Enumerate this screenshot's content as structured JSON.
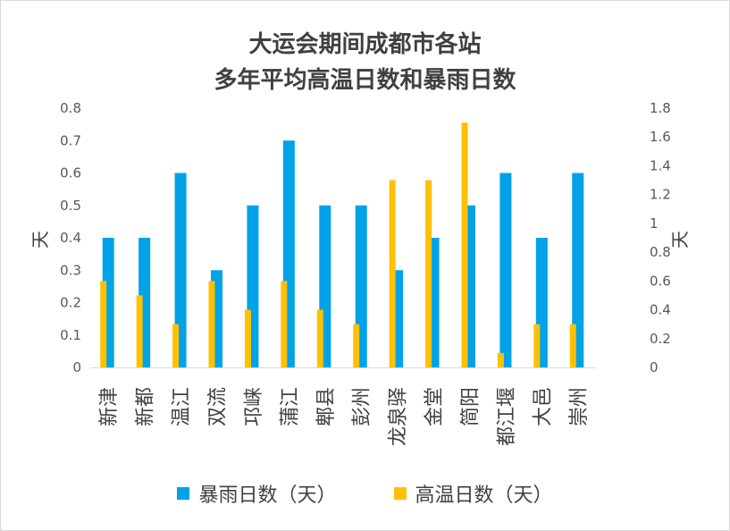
{
  "chart_data": {
    "type": "bar",
    "title_lines": [
      "大运会期间成都市各站",
      "多年平均高温日数和暴雨日数"
    ],
    "categories": [
      "新津",
      "新都",
      "温江",
      "双流",
      "邛崃",
      "蒲江",
      "郫县",
      "彭州",
      "龙泉驿",
      "金堂",
      "简阳",
      "都江堰",
      "大邑",
      "崇州"
    ],
    "series": [
      {
        "name": "暴雨日数（天）",
        "axis": "left",
        "color": "#00a2e8",
        "values": [
          0.4,
          0.4,
          0.6,
          0.3,
          0.5,
          0.7,
          0.5,
          0.5,
          0.3,
          0.4,
          0.5,
          0.6,
          0.4,
          0.6
        ]
      },
      {
        "name": "高温日数（天）",
        "axis": "right",
        "color": "#ffc000",
        "values": [
          0.6,
          0.5,
          0.3,
          0.6,
          0.4,
          0.6,
          0.4,
          0.3,
          1.3,
          1.3,
          1.7,
          0.1,
          0.3,
          0.3
        ]
      }
    ],
    "ylabel_left": "天",
    "ylabel_right": "天",
    "ylim_left": [
      0,
      0.8
    ],
    "ylim_right": [
      0,
      1.8
    ],
    "yticks_left": [
      "0",
      "0.1",
      "0.2",
      "0.3",
      "0.4",
      "0.5",
      "0.6",
      "0.7",
      "0.8"
    ],
    "yticks_right": [
      "0",
      "0.2",
      "0.4",
      "0.6",
      "0.8",
      "1",
      "1.2",
      "1.4",
      "1.6",
      "1.8"
    ],
    "grid": false,
    "legend_position": "bottom"
  }
}
